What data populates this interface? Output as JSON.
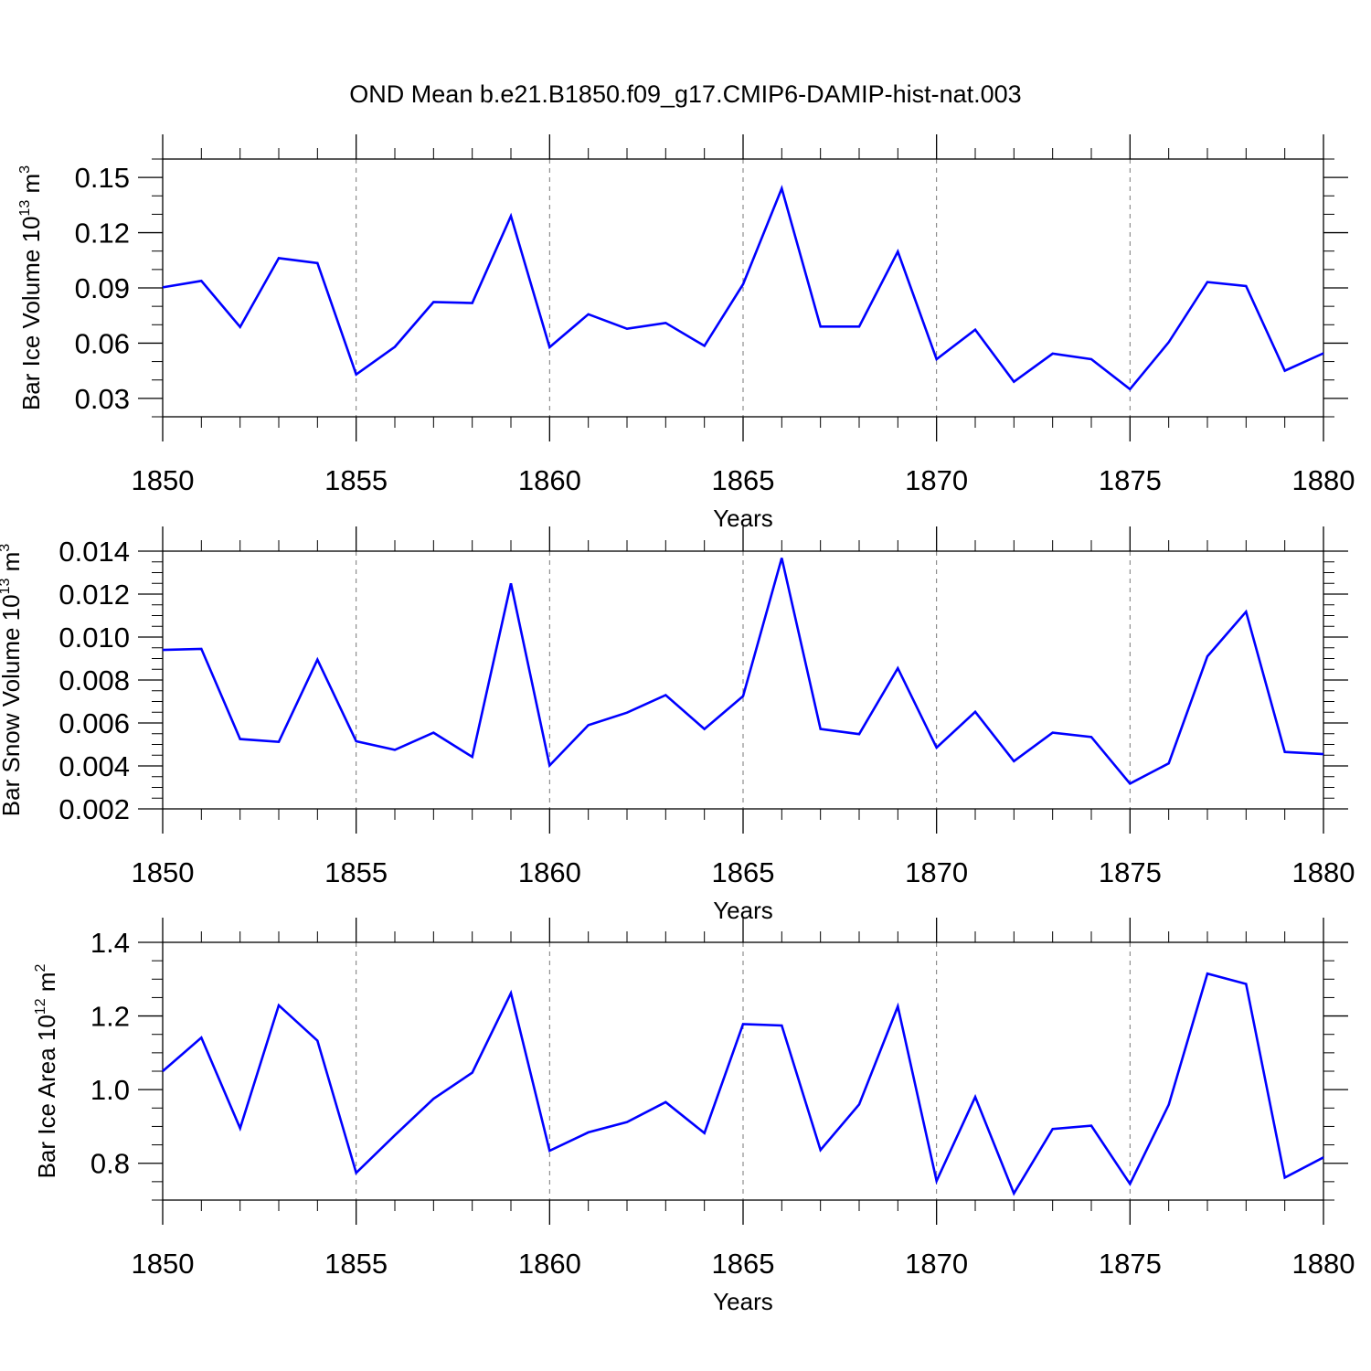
{
  "figure_title": "OND Mean b.e21.B1850.f09_g17.CMIP6-DAMIP-hist-nat.003",
  "series_color": "#0000ff",
  "chart_data": [
    {
      "type": "line",
      "ylabel": "Bar Ice Volume 10",
      "ylabel_exp": "13",
      "ylabel_unit": " m",
      "ylabel_unit_exp": "3",
      "xlabel": "Years",
      "xlim": [
        1850,
        1880
      ],
      "ylim": [
        0.02,
        0.16
      ],
      "yticks": [
        0.03,
        0.06,
        0.09,
        0.12,
        0.15
      ],
      "ytick_labels": [
        "0.03",
        "0.06",
        "0.09",
        "0.12",
        "0.15"
      ],
      "y_minor_step": 0.01,
      "xticks": [
        1850,
        1855,
        1860,
        1865,
        1870,
        1875,
        1880
      ],
      "xtick_labels": [
        "1850",
        "1855",
        "1860",
        "1865",
        "1870",
        "1875",
        "1880"
      ],
      "x_minor_step": 1,
      "vgrid_dashed": [
        1855,
        1860,
        1865,
        1870,
        1875
      ],
      "x": [
        1850,
        1851,
        1852,
        1853,
        1854,
        1855,
        1856,
        1857,
        1858,
        1859,
        1860,
        1861,
        1862,
        1863,
        1864,
        1865,
        1866,
        1867,
        1868,
        1869,
        1870,
        1871,
        1872,
        1873,
        1874,
        1875,
        1876,
        1877,
        1878,
        1879,
        1880
      ],
      "values": [
        0.0903,
        0.0938,
        0.0688,
        0.1062,
        0.1035,
        0.043,
        0.058,
        0.0823,
        0.0818,
        0.129,
        0.0578,
        0.0757,
        0.0678,
        0.071,
        0.0585,
        0.092,
        0.144,
        0.069,
        0.069,
        0.1097,
        0.0513,
        0.0673,
        0.039,
        0.0543,
        0.0513,
        0.035,
        0.0605,
        0.0932,
        0.091,
        0.045,
        0.0545
      ]
    },
    {
      "type": "line",
      "ylabel": "Bar Snow Volume 10",
      "ylabel_exp": "13",
      "ylabel_unit": " m",
      "ylabel_unit_exp": "3",
      "xlabel": "Years",
      "xlim": [
        1850,
        1880
      ],
      "ylim": [
        0.002,
        0.014
      ],
      "yticks": [
        0.002,
        0.004,
        0.006,
        0.008,
        0.01,
        0.012,
        0.014
      ],
      "ytick_labels": [
        "0.002",
        "0.004",
        "0.006",
        "0.008",
        "0.010",
        "0.012",
        "0.014"
      ],
      "y_minor_step": 0.0005,
      "xticks": [
        1850,
        1855,
        1860,
        1865,
        1870,
        1875,
        1880
      ],
      "xtick_labels": [
        "1850",
        "1855",
        "1860",
        "1865",
        "1870",
        "1875",
        "1880"
      ],
      "x_minor_step": 1,
      "vgrid_dashed": [
        1855,
        1860,
        1865,
        1870,
        1875
      ],
      "x": [
        1850,
        1851,
        1852,
        1853,
        1854,
        1855,
        1856,
        1857,
        1858,
        1859,
        1860,
        1861,
        1862,
        1863,
        1864,
        1865,
        1866,
        1867,
        1868,
        1869,
        1870,
        1871,
        1872,
        1873,
        1874,
        1875,
        1876,
        1877,
        1878,
        1879,
        1880
      ],
      "values": [
        0.0094,
        0.00945,
        0.00525,
        0.00512,
        0.00895,
        0.00515,
        0.00475,
        0.00555,
        0.00442,
        0.0125,
        0.00402,
        0.0059,
        0.00648,
        0.0073,
        0.00572,
        0.00725,
        0.01368,
        0.00572,
        0.00548,
        0.00855,
        0.00485,
        0.00652,
        0.00422,
        0.00555,
        0.00535,
        0.00318,
        0.00412,
        0.0091,
        0.01118,
        0.00465,
        0.00455
      ]
    },
    {
      "type": "line",
      "ylabel": "Bar Ice Area 10",
      "ylabel_exp": "12",
      "ylabel_unit": " m",
      "ylabel_unit_exp": "2",
      "xlabel": "Years",
      "xlim": [
        1850,
        1880
      ],
      "ylim": [
        0.7,
        1.4
      ],
      "yticks": [
        0.8,
        1.0,
        1.2,
        1.4
      ],
      "ytick_labels": [
        "0.8",
        "1.0",
        "1.2",
        "1.4"
      ],
      "y_minor_step": 0.05,
      "xticks": [
        1850,
        1855,
        1860,
        1865,
        1870,
        1875,
        1880
      ],
      "xtick_labels": [
        "1850",
        "1855",
        "1860",
        "1865",
        "1870",
        "1875",
        "1880"
      ],
      "x_minor_step": 1,
      "vgrid_dashed": [
        1855,
        1860,
        1865,
        1870,
        1875
      ],
      "x": [
        1850,
        1851,
        1852,
        1853,
        1854,
        1855,
        1856,
        1857,
        1858,
        1859,
        1860,
        1861,
        1862,
        1863,
        1864,
        1865,
        1866,
        1867,
        1868,
        1869,
        1870,
        1871,
        1872,
        1873,
        1874,
        1875,
        1876,
        1877,
        1878,
        1879,
        1880
      ],
      "values": [
        1.05,
        1.141,
        0.895,
        1.229,
        1.133,
        0.774,
        0.876,
        0.975,
        1.046,
        1.262,
        0.834,
        0.884,
        0.912,
        0.966,
        0.882,
        1.178,
        1.174,
        0.836,
        0.96,
        1.226,
        0.752,
        0.98,
        0.718,
        0.893,
        0.902,
        0.744,
        0.959,
        1.315,
        1.287,
        0.761,
        0.816
      ]
    }
  ]
}
